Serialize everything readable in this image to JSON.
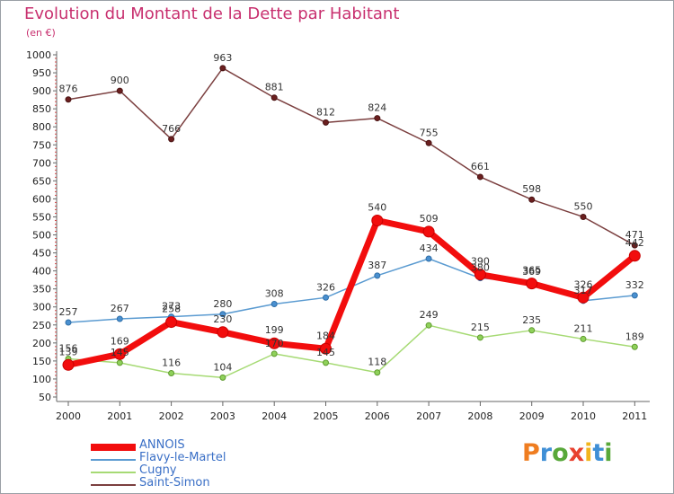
{
  "header": {
    "title": "Evolution du Montant de la Dette par Habitant",
    "subtitle": "(en €)"
  },
  "brand": {
    "letters": [
      "P",
      "r",
      "o",
      "x",
      "i",
      "t",
      "i"
    ],
    "colors": [
      "#ef7d20",
      "#3f8fd6",
      "#58a83a",
      "#e8412f",
      "#f2b51c",
      "#3f8fd6",
      "#58a83a"
    ]
  },
  "chart_data": {
    "type": "line",
    "title": "Evolution du Montant de la Dette par Habitant",
    "subtitle": "(en €)",
    "x": [
      "2000",
      "2001",
      "2002",
      "2003",
      "2004",
      "2005",
      "2006",
      "2007",
      "2008",
      "2009",
      "2010",
      "2011"
    ],
    "yticks": [
      50,
      100,
      150,
      200,
      250,
      300,
      350,
      400,
      450,
      500,
      550,
      600,
      650,
      700,
      750,
      800,
      850,
      900,
      950,
      1000
    ],
    "ylim": [
      50,
      1000
    ],
    "grid": false,
    "legend": "bottom-left",
    "series": [
      {
        "name": "ANNOIS",
        "color": "#f20d0d",
        "values": [
          139,
          169,
          258,
          230,
          199,
          184,
          540,
          509,
          390,
          365,
          326,
          442
        ]
      },
      {
        "name": "Flavy-le-Martel",
        "color": "#5b9bd1",
        "values": [
          257,
          267,
          273,
          280,
          308,
          326,
          387,
          434,
          380,
          369,
          317,
          332
        ]
      },
      {
        "name": "Cugny",
        "color": "#a6da74",
        "values": [
          156,
          145,
          116,
          104,
          170,
          145,
          118,
          249,
          215,
          235,
          211,
          189
        ]
      },
      {
        "name": "Saint-Simon",
        "color": "#7b3f3f",
        "values": [
          876,
          900,
          766,
          963,
          881,
          812,
          824,
          755,
          661,
          598,
          550,
          471
        ]
      }
    ]
  }
}
